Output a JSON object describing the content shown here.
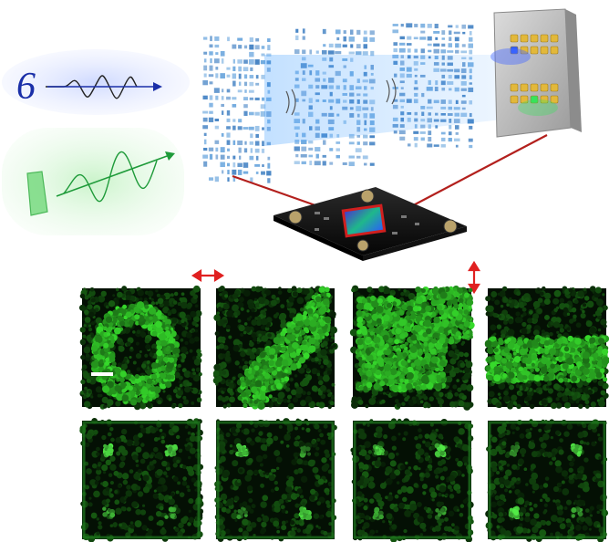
{
  "figure": {
    "digit_label": "6",
    "input_beams": [
      {
        "kind": "blue",
        "color": "#1a2f9e"
      },
      {
        "kind": "green",
        "color": "#1f9b3a"
      }
    ],
    "diffractive_layers": 3,
    "output_detector": {
      "rows": 2,
      "cols": 5,
      "pad_color": "#e2b83a",
      "highlights": [
        {
          "row": 0,
          "col": 0,
          "color": "#2b5bff"
        },
        {
          "row": 1,
          "col": 2,
          "color": "#35e35b"
        }
      ]
    },
    "sensor_chip_color": "#0d0d0d",
    "connector_line_color": "#b3201d",
    "polarization_arrows": [
      {
        "orientation": "horizontal",
        "color": "#e02020"
      },
      {
        "orientation": "vertical",
        "color": "#e02020"
      }
    ],
    "micrograph_rows": [
      {
        "name": "patterns",
        "panels": [
          "ring",
          "diagonal",
          "block",
          "band"
        ]
      },
      {
        "name": "detector-maps",
        "panels": [
          "spots-a",
          "spots-b",
          "spots-c",
          "spots-d"
        ]
      }
    ],
    "micrograph_color": "#2fb12f"
  }
}
